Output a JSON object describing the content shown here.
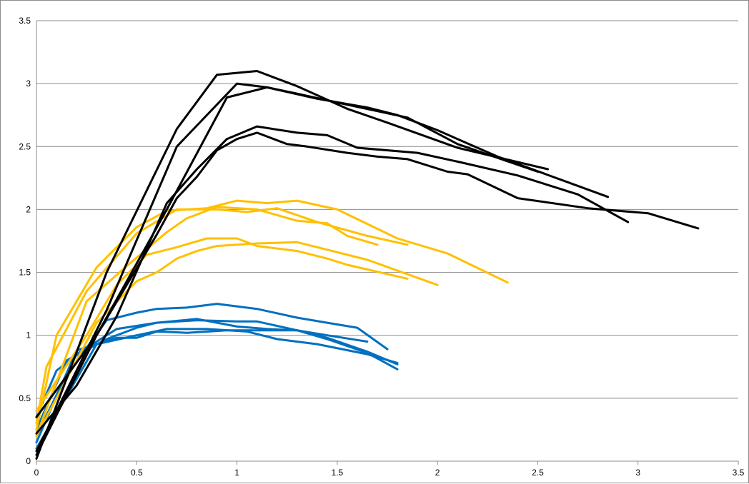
{
  "chart_data": {
    "type": "line",
    "title": "",
    "xlabel": "",
    "ylabel": "",
    "xlim": [
      0,
      3.5
    ],
    "ylim": [
      0,
      3.5
    ],
    "x_ticks": [
      "0",
      "0.5",
      "1",
      "1.5",
      "2",
      "2.5",
      "3",
      "3.5"
    ],
    "y_ticks": [
      "0",
      "0.5",
      "1",
      "1.5",
      "2",
      "2.5",
      "3",
      "3.5"
    ],
    "grid": "horizontal",
    "legend": "none",
    "colors": {
      "black": "#000000",
      "yellow": "#FFC000",
      "blue": "#0070C0",
      "grid": "#8C8C8C"
    },
    "series": [
      {
        "group": "black",
        "color": "#000000",
        "points": [
          [
            0,
            0.02
          ],
          [
            0.35,
            1.5
          ],
          [
            0.7,
            2.64
          ],
          [
            0.9,
            3.07
          ],
          [
            1.1,
            3.1
          ],
          [
            1.3,
            2.98
          ],
          [
            1.55,
            2.8
          ],
          [
            1.75,
            2.69
          ],
          [
            2.1,
            2.49
          ],
          [
            2.55,
            2.32
          ]
        ]
      },
      {
        "group": "black",
        "color": "#000000",
        "points": [
          [
            0,
            0.08
          ],
          [
            0.35,
            1.2
          ],
          [
            0.7,
            2.5
          ],
          [
            1.0,
            3.0
          ],
          [
            1.15,
            2.97
          ],
          [
            1.3,
            2.92
          ],
          [
            1.5,
            2.85
          ],
          [
            1.85,
            2.73
          ],
          [
            2.1,
            2.52
          ],
          [
            2.5,
            2.3
          ]
        ]
      },
      {
        "group": "black",
        "color": "#000000",
        "points": [
          [
            0,
            0.35
          ],
          [
            0.3,
            1.0
          ],
          [
            0.65,
            2.0
          ],
          [
            0.95,
            2.89
          ],
          [
            1.15,
            2.97
          ],
          [
            1.4,
            2.88
          ],
          [
            1.65,
            2.81
          ],
          [
            1.8,
            2.75
          ],
          [
            2.0,
            2.63
          ],
          [
            2.3,
            2.42
          ],
          [
            2.85,
            2.1
          ]
        ]
      },
      {
        "group": "black",
        "color": "#000000",
        "points": [
          [
            0,
            0.22
          ],
          [
            0.2,
            0.6
          ],
          [
            0.4,
            1.15
          ],
          [
            0.65,
            2.05
          ],
          [
            0.8,
            2.32
          ],
          [
            0.9,
            2.48
          ],
          [
            0.95,
            2.56
          ],
          [
            1.1,
            2.66
          ],
          [
            1.3,
            2.61
          ],
          [
            1.45,
            2.59
          ],
          [
            1.6,
            2.49
          ],
          [
            1.9,
            2.45
          ],
          [
            2.1,
            2.38
          ],
          [
            2.4,
            2.27
          ],
          [
            2.7,
            2.12
          ],
          [
            2.95,
            1.9
          ]
        ]
      },
      {
        "group": "black",
        "color": "#000000",
        "points": [
          [
            0,
            0.05
          ],
          [
            0.3,
            1.0
          ],
          [
            0.6,
            1.8
          ],
          [
            0.7,
            2.09
          ],
          [
            0.8,
            2.26
          ],
          [
            0.9,
            2.47
          ],
          [
            1.0,
            2.56
          ],
          [
            1.1,
            2.61
          ],
          [
            1.25,
            2.52
          ],
          [
            1.35,
            2.5
          ],
          [
            1.55,
            2.45
          ],
          [
            1.7,
            2.42
          ],
          [
            1.85,
            2.4
          ],
          [
            2.05,
            2.3
          ],
          [
            2.15,
            2.28
          ],
          [
            2.4,
            2.09
          ],
          [
            2.75,
            2.01
          ],
          [
            3.05,
            1.97
          ],
          [
            3.3,
            1.85
          ]
        ]
      },
      {
        "group": "yellow",
        "color": "#FFC000",
        "points": [
          [
            0,
            0.25
          ],
          [
            0.1,
            1.0
          ],
          [
            0.3,
            1.54
          ],
          [
            0.5,
            1.86
          ],
          [
            0.65,
            1.99
          ],
          [
            0.85,
            2.01
          ],
          [
            1.0,
            2.07
          ],
          [
            1.15,
            2.05
          ],
          [
            1.3,
            2.07
          ],
          [
            1.5,
            2.0
          ],
          [
            1.8,
            1.77
          ],
          [
            2.05,
            1.65
          ],
          [
            2.35,
            1.42
          ]
        ]
      },
      {
        "group": "yellow",
        "color": "#FFC000",
        "points": [
          [
            0,
            0.3
          ],
          [
            0.05,
            0.75
          ],
          [
            0.25,
            1.35
          ],
          [
            0.5,
            1.81
          ],
          [
            0.7,
            2.0
          ],
          [
            0.9,
            2.0
          ],
          [
            1.05,
            1.98
          ],
          [
            1.2,
            2.01
          ],
          [
            1.4,
            1.9
          ],
          [
            1.65,
            1.79
          ],
          [
            1.85,
            1.72
          ]
        ]
      },
      {
        "group": "yellow",
        "color": "#FFC000",
        "points": [
          [
            0,
            0.2
          ],
          [
            0.25,
            1.27
          ],
          [
            0.45,
            1.55
          ],
          [
            0.65,
            1.82
          ],
          [
            0.75,
            1.93
          ],
          [
            0.9,
            2.02
          ],
          [
            1.1,
            2.0
          ],
          [
            1.3,
            1.91
          ],
          [
            1.45,
            1.89
          ],
          [
            1.55,
            1.79
          ],
          [
            1.7,
            1.72
          ]
        ]
      },
      {
        "group": "yellow",
        "color": "#FFC000",
        "points": [
          [
            0,
            0.4
          ],
          [
            0.25,
            1.0
          ],
          [
            0.4,
            1.4
          ],
          [
            0.55,
            1.64
          ],
          [
            0.7,
            1.7
          ],
          [
            0.85,
            1.77
          ],
          [
            1.0,
            1.77
          ],
          [
            1.1,
            1.71
          ],
          [
            1.3,
            1.67
          ],
          [
            1.45,
            1.61
          ],
          [
            1.55,
            1.56
          ],
          [
            1.85,
            1.45
          ]
        ]
      },
      {
        "group": "yellow",
        "color": "#FFC000",
        "points": [
          [
            0,
            0.2
          ],
          [
            0.3,
            1.1
          ],
          [
            0.5,
            1.43
          ],
          [
            0.6,
            1.5
          ],
          [
            0.7,
            1.61
          ],
          [
            0.8,
            1.67
          ],
          [
            0.9,
            1.71
          ],
          [
            1.1,
            1.73
          ],
          [
            1.3,
            1.74
          ],
          [
            1.45,
            1.68
          ],
          [
            1.65,
            1.6
          ],
          [
            2.0,
            1.4
          ]
        ]
      },
      {
        "group": "blue",
        "color": "#0070C0",
        "points": [
          [
            0,
            0.35
          ],
          [
            0.1,
            0.72
          ],
          [
            0.25,
            0.9
          ],
          [
            0.35,
            1.12
          ],
          [
            0.5,
            1.18
          ],
          [
            0.6,
            1.21
          ],
          [
            0.75,
            1.22
          ],
          [
            0.9,
            1.25
          ],
          [
            1.1,
            1.21
          ],
          [
            1.3,
            1.14
          ],
          [
            1.45,
            1.1
          ],
          [
            1.6,
            1.06
          ],
          [
            1.75,
            0.89
          ]
        ]
      },
      {
        "group": "blue",
        "color": "#0070C0",
        "points": [
          [
            0,
            0.2
          ],
          [
            0.2,
            0.85
          ],
          [
            0.4,
            1.05
          ],
          [
            0.6,
            1.1
          ],
          [
            0.8,
            1.12
          ],
          [
            1.0,
            1.11
          ],
          [
            1.1,
            1.11
          ],
          [
            1.3,
            1.04
          ],
          [
            1.45,
            1.0
          ],
          [
            1.65,
            0.95
          ]
        ]
      },
      {
        "group": "blue",
        "color": "#0070C0",
        "points": [
          [
            0,
            0.25
          ],
          [
            0.15,
            0.8
          ],
          [
            0.35,
            0.97
          ],
          [
            0.5,
            1.06
          ],
          [
            0.6,
            1.1
          ],
          [
            0.8,
            1.13
          ],
          [
            1.0,
            1.07
          ],
          [
            1.15,
            1.05
          ],
          [
            1.3,
            1.04
          ],
          [
            1.45,
            0.98
          ],
          [
            1.65,
            0.87
          ],
          [
            1.8,
            0.77
          ]
        ]
      },
      {
        "group": "blue",
        "color": "#0070C0",
        "points": [
          [
            0,
            0.15
          ],
          [
            0.2,
            0.88
          ],
          [
            0.4,
            0.98
          ],
          [
            0.5,
            0.98
          ],
          [
            0.6,
            1.03
          ],
          [
            0.75,
            1.02
          ],
          [
            0.95,
            1.04
          ],
          [
            1.1,
            1.04
          ],
          [
            1.3,
            1.04
          ],
          [
            1.45,
            0.97
          ],
          [
            1.65,
            0.86
          ],
          [
            1.8,
            0.73
          ]
        ]
      },
      {
        "group": "blue",
        "color": "#0070C0",
        "points": [
          [
            0,
            0.1
          ],
          [
            0.3,
            0.93
          ],
          [
            0.5,
            1.0
          ],
          [
            0.65,
            1.05
          ],
          [
            0.85,
            1.05
          ],
          [
            1.05,
            1.03
          ],
          [
            1.2,
            0.97
          ],
          [
            1.4,
            0.93
          ],
          [
            1.65,
            0.85
          ],
          [
            1.8,
            0.78
          ]
        ]
      }
    ]
  }
}
